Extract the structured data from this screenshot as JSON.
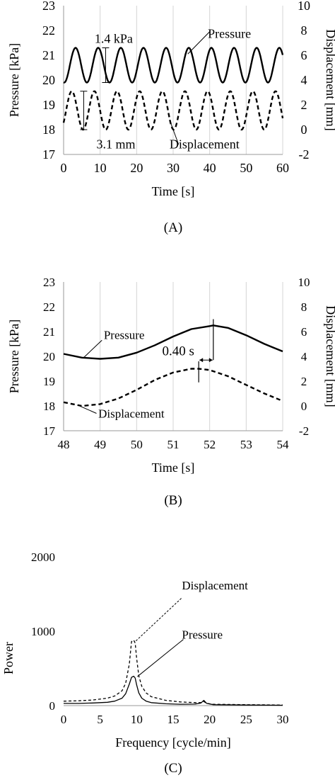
{
  "chart_data": [
    {
      "type": "line",
      "panel_label": "(A)",
      "xlabel": "Time [s]",
      "ylabel": "Pressure [kPa]",
      "y2label": "Displacement [mm]",
      "xlim": [
        0,
        60
      ],
      "ylim": [
        17,
        23
      ],
      "y2lim": [
        -2,
        10
      ],
      "xticks": [
        0,
        10,
        20,
        30,
        40,
        50,
        60
      ],
      "yticks": [
        17,
        18,
        19,
        20,
        21,
        22,
        23
      ],
      "y2ticks": [
        -2,
        0,
        2,
        4,
        6,
        8,
        10
      ],
      "grid": "vertical",
      "series": [
        {
          "name": "Pressure",
          "axis": "left",
          "style": "solid",
          "color": "#000000",
          "model": {
            "mean": 20.6,
            "amplitude": 0.7,
            "period_s": 6.2,
            "phase_deg": -100
          }
        },
        {
          "name": "Displacement",
          "axis": "right",
          "style": "dashed",
          "color": "#000000",
          "model": {
            "mean": 1.55,
            "amplitude": 1.55,
            "period_s": 6.2,
            "phase_deg": -40
          }
        }
      ],
      "annotations": [
        {
          "text": "Pressure",
          "series": "Pressure"
        },
        {
          "text": "Displacement",
          "series": "Displacement"
        },
        {
          "text": "1.4 kPa",
          "measures": "Pressure peak-to-peak"
        },
        {
          "text": "3.1 mm",
          "measures": "Displacement peak-to-peak"
        }
      ]
    },
    {
      "type": "line",
      "panel_label": "(B)",
      "xlabel": "Time [s]",
      "ylabel": "Pressure [kPa]",
      "y2label": "Displacement [mm]",
      "xlim": [
        48,
        54
      ],
      "ylim": [
        17,
        23
      ],
      "y2lim": [
        -2,
        10
      ],
      "xticks": [
        48,
        49,
        50,
        51,
        52,
        53,
        54
      ],
      "yticks": [
        17,
        18,
        19,
        20,
        21,
        22,
        23
      ],
      "y2ticks": [
        -2,
        0,
        2,
        4,
        6,
        8,
        10
      ],
      "grid": "vertical",
      "series": [
        {
          "name": "Pressure",
          "axis": "left",
          "style": "solid",
          "color": "#000000",
          "x": [
            48,
            48.5,
            49,
            49.5,
            50,
            50.5,
            51,
            51.5,
            52,
            52.1,
            52.5,
            53,
            53.5,
            54
          ],
          "y": [
            20.1,
            19.95,
            19.9,
            19.95,
            20.15,
            20.45,
            20.8,
            21.1,
            21.22,
            21.25,
            21.15,
            20.85,
            20.5,
            20.2
          ]
        },
        {
          "name": "Displacement",
          "axis": "right",
          "style": "dashed",
          "color": "#000000",
          "x": [
            48,
            48.5,
            49,
            49.5,
            50,
            50.5,
            51,
            51.5,
            51.7,
            52,
            52.5,
            53,
            53.5,
            54
          ],
          "y": [
            0.3,
            0.0,
            0.15,
            0.6,
            1.3,
            2.1,
            2.7,
            3.0,
            3.0,
            2.9,
            2.4,
            1.7,
            1.0,
            0.4
          ]
        }
      ],
      "annotations": [
        {
          "text": "Pressure",
          "series": "Pressure"
        },
        {
          "text": "Displacement",
          "series": "Displacement"
        },
        {
          "text": "0.40 s",
          "measures": "lag between displacement peak (51.7 s) and pressure peak (52.1 s)"
        }
      ]
    },
    {
      "type": "line",
      "panel_label": "(C)",
      "xlabel": "Frequency [cycle/min]",
      "ylabel": "Power",
      "xlim": [
        0,
        30
      ],
      "ylim": [
        0,
        2000
      ],
      "xticks": [
        0,
        5,
        10,
        15,
        20,
        25,
        30
      ],
      "yticks": [
        0,
        1000,
        2000
      ],
      "grid": "none",
      "series": [
        {
          "name": "Displacement",
          "style": "dashed",
          "color": "#000000",
          "x": [
            0,
            2,
            4,
            6,
            7,
            8,
            8.5,
            9,
            9.3,
            9.6,
            9.8,
            10,
            10.3,
            10.7,
            11.3,
            12,
            14,
            16,
            18,
            18.8,
            19.2,
            19.6,
            20.5,
            25,
            30
          ],
          "y": [
            60,
            65,
            75,
            100,
            130,
            200,
            300,
            560,
            860,
            880,
            840,
            640,
            400,
            260,
            170,
            120,
            70,
            50,
            40,
            40,
            55,
            30,
            18,
            12,
            8
          ]
        },
        {
          "name": "Pressure",
          "style": "solid",
          "color": "#000000",
          "x": [
            0,
            2,
            4,
            6,
            7,
            8,
            8.5,
            9,
            9.3,
            9.6,
            9.8,
            10,
            10.3,
            10.7,
            11.3,
            12,
            14,
            16,
            18,
            18.8,
            19.2,
            19.6,
            20.5,
            25,
            30
          ],
          "y": [
            30,
            30,
            35,
            45,
            60,
            100,
            160,
            290,
            380,
            395,
            370,
            280,
            170,
            100,
            60,
            40,
            25,
            18,
            20,
            35,
            70,
            30,
            12,
            8,
            5
          ]
        }
      ],
      "annotations": [
        {
          "text": "Displacement",
          "series": "Displacement"
        },
        {
          "text": "Pressure",
          "series": "Pressure"
        }
      ]
    }
  ]
}
